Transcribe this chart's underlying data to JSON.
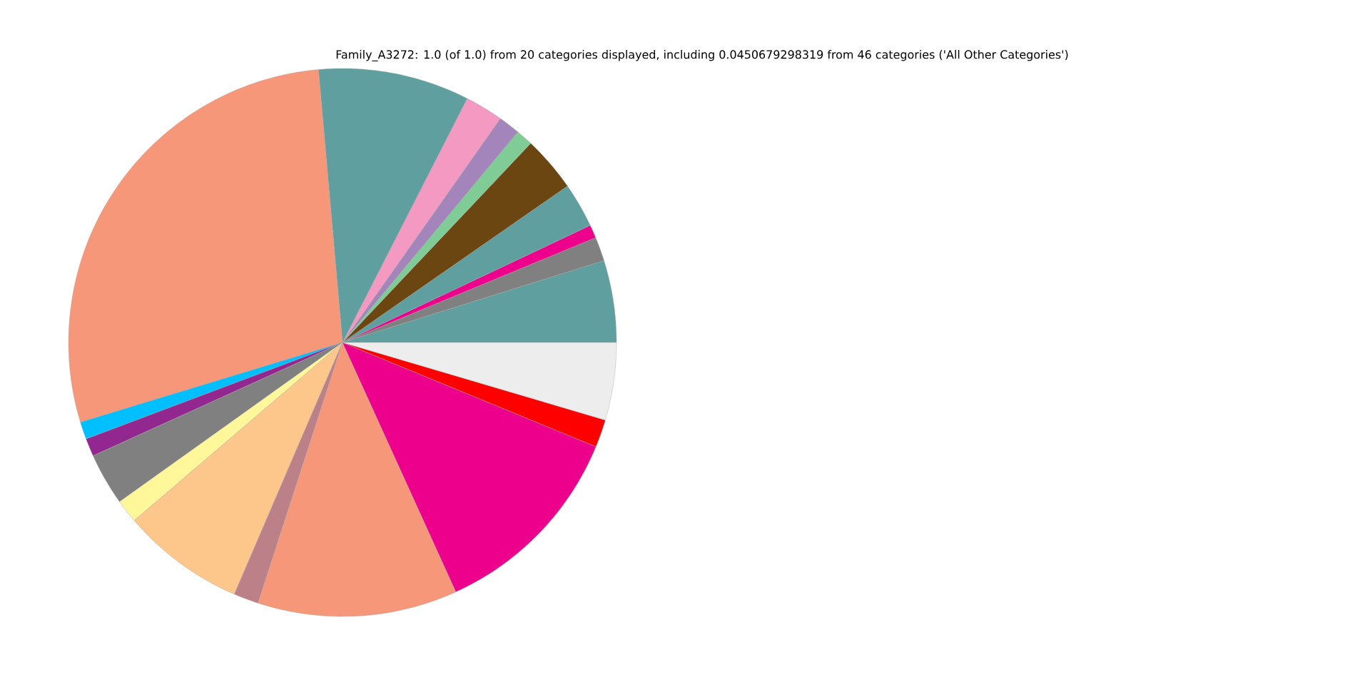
{
  "chart_data": {
    "type": "pie",
    "title": "Family_A3272: 1.0 (of 1.0) from 20 categories displayed, including 0.0450679298319 from 46 categories ('All Other Categories')",
    "categories": [
      null,
      null,
      null,
      null,
      null,
      null,
      null,
      null,
      null,
      null,
      null,
      null,
      null,
      null,
      null,
      null,
      null,
      null,
      null,
      null
    ],
    "values": [
      4.83,
      1.42,
      0.78,
      2.64,
      3.28,
      1.0,
      1.28,
      2.25,
      8.92,
      28.3,
      1.03,
      1.06,
      3.08,
      1.39,
      7.28,
      1.47,
      11.78,
      12.0,
      1.64,
      4.57
    ],
    "colors": [
      "#5f9f9f",
      "#808080",
      "#ec008c",
      "#5f9f9f",
      "#6b4610",
      "#7fcc96",
      "#a385bb",
      "#f49ac2",
      "#5f9f9f",
      "#f7977a",
      "#00bfff",
      "#92278f",
      "#808080",
      "#fff799",
      "#fdc68a",
      "#bc8088",
      "#f7977a",
      "#ec008c",
      "#ff0000",
      "#ededed"
    ]
  }
}
